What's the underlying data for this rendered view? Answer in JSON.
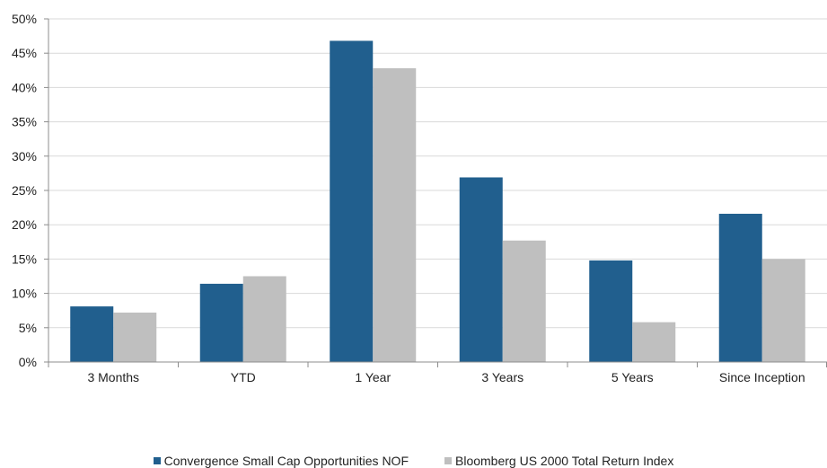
{
  "chart_data": {
    "type": "bar",
    "title": "",
    "xlabel": "",
    "ylabel": "",
    "categories": [
      "3 Months",
      "YTD",
      "1 Year",
      "3 Years",
      "5 Years",
      "Since Inception"
    ],
    "series": [
      {
        "name": "Convergence Small Cap Opportunities NOF",
        "color": "#215f8e",
        "values": [
          8.1,
          11.4,
          46.8,
          26.9,
          14.8,
          21.6
        ]
      },
      {
        "name": "Bloomberg US 2000 Total Return Index",
        "color": "#bfbfbf",
        "values": [
          7.2,
          12.5,
          42.8,
          17.7,
          5.8,
          15.0
        ]
      }
    ],
    "ylim": [
      0,
      50
    ],
    "yticks": [
      0,
      5,
      10,
      15,
      20,
      25,
      30,
      35,
      40,
      45,
      50
    ],
    "ytick_labels": [
      "0%",
      "5%",
      "10%",
      "15%",
      "20%",
      "25%",
      "30%",
      "35%",
      "40%",
      "45%",
      "50%"
    ],
    "grid": true,
    "legend_position": "bottom"
  }
}
